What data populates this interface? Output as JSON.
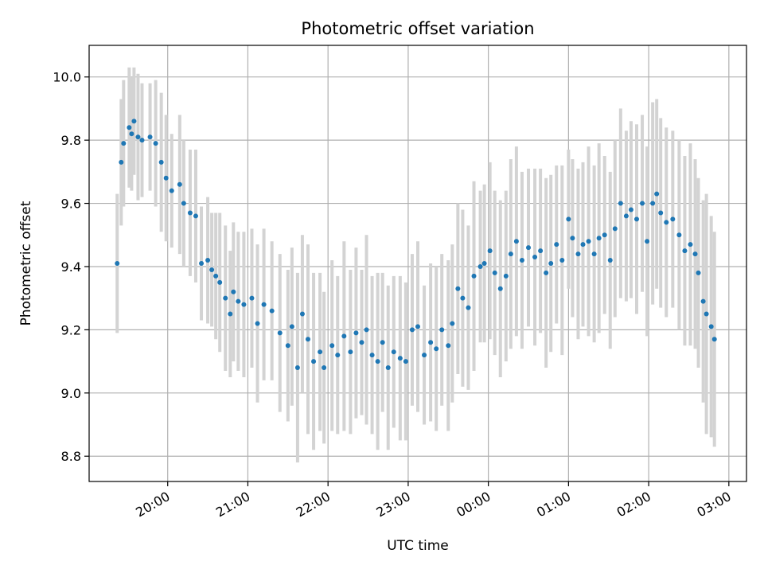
{
  "chart_data": {
    "type": "scatter",
    "title": "Photometric offset variation",
    "xlabel": "UTC time",
    "ylabel": "Photometric offset",
    "x_axis_kind": "time",
    "x_tick_labels": [
      "20:00",
      "21:00",
      "22:00",
      "23:00",
      "00:00",
      "01:00",
      "02:00",
      "03:00"
    ],
    "x_tick_hours": [
      20,
      21,
      22,
      23,
      24,
      25,
      26,
      27
    ],
    "xlim_hours": [
      19.02,
      27.22
    ],
    "y_tick_labels": [
      "8.8",
      "9.0",
      "9.2",
      "9.4",
      "9.6",
      "9.8",
      "10.0"
    ],
    "y_ticks": [
      8.8,
      9.0,
      9.2,
      9.4,
      9.6,
      9.8,
      10.0
    ],
    "ylim": [
      8.72,
      10.1
    ],
    "grid": true,
    "colors": {
      "points": "#1f77b4",
      "error_bars": "#d3d3d3",
      "grid": "#b0b0b0"
    },
    "series": [
      {
        "x_hours": [
          19.37,
          19.42,
          19.45,
          19.52,
          19.55,
          19.58,
          19.63,
          19.68,
          19.78,
          19.85,
          19.92,
          19.98,
          20.05,
          20.15,
          20.2,
          20.28,
          20.35,
          20.42,
          20.5,
          20.55,
          20.6,
          20.65,
          20.72,
          20.78,
          20.82,
          20.88,
          20.95,
          21.05,
          21.12,
          21.2,
          21.3,
          21.4,
          21.5,
          21.55,
          21.62,
          21.68,
          21.75,
          21.82,
          21.9,
          21.95,
          22.05,
          22.12,
          22.2,
          22.28,
          22.35,
          22.42,
          22.48,
          22.55,
          22.62,
          22.68,
          22.75,
          22.82,
          22.9,
          22.97,
          23.05,
          23.12,
          23.2,
          23.28,
          23.35,
          23.42,
          23.5,
          23.55,
          23.62,
          23.68,
          23.75,
          23.82,
          23.9,
          23.95,
          24.02,
          24.08,
          24.15,
          24.22,
          24.28,
          24.35,
          24.42,
          24.5,
          24.58,
          24.65,
          24.72,
          24.78,
          24.85,
          24.92,
          25.0,
          25.05,
          25.12,
          25.18,
          25.25,
          25.32,
          25.38,
          25.45,
          25.52,
          25.58,
          25.65,
          25.72,
          25.78,
          25.85,
          25.92,
          25.98,
          26.05,
          26.1,
          26.15,
          26.22,
          26.3,
          26.38,
          26.45,
          26.52,
          26.58,
          26.62,
          26.68,
          26.72,
          26.78,
          26.82
        ],
        "y": [
          9.41,
          9.73,
          9.79,
          9.84,
          9.82,
          9.86,
          9.81,
          9.8,
          9.81,
          9.79,
          9.73,
          9.68,
          9.64,
          9.66,
          9.6,
          9.57,
          9.56,
          9.41,
          9.42,
          9.39,
          9.37,
          9.35,
          9.3,
          9.25,
          9.32,
          9.29,
          9.28,
          9.3,
          9.22,
          9.28,
          9.26,
          9.19,
          9.15,
          9.21,
          9.08,
          9.25,
          9.17,
          9.1,
          9.13,
          9.08,
          9.15,
          9.12,
          9.18,
          9.13,
          9.19,
          9.16,
          9.2,
          9.12,
          9.1,
          9.16,
          9.08,
          9.13,
          9.11,
          9.1,
          9.2,
          9.21,
          9.12,
          9.16,
          9.14,
          9.2,
          9.15,
          9.22,
          9.33,
          9.3,
          9.27,
          9.37,
          9.4,
          9.41,
          9.45,
          9.38,
          9.33,
          9.37,
          9.44,
          9.48,
          9.42,
          9.46,
          9.43,
          9.45,
          9.38,
          9.41,
          9.47,
          9.42,
          9.55,
          9.49,
          9.44,
          9.47,
          9.48,
          9.44,
          9.49,
          9.5,
          9.42,
          9.52,
          9.6,
          9.56,
          9.58,
          9.55,
          9.6,
          9.48,
          9.6,
          9.63,
          9.57,
          9.54,
          9.55,
          9.5,
          9.45,
          9.47,
          9.44,
          9.38,
          9.29,
          9.25,
          9.21,
          9.17
        ],
        "yerr": [
          0.22,
          0.2,
          0.2,
          0.19,
          0.18,
          0.17,
          0.2,
          0.18,
          0.17,
          0.2,
          0.22,
          0.2,
          0.18,
          0.22,
          0.2,
          0.2,
          0.21,
          0.18,
          0.2,
          0.18,
          0.2,
          0.22,
          0.23,
          0.2,
          0.22,
          0.22,
          0.23,
          0.22,
          0.25,
          0.24,
          0.22,
          0.25,
          0.24,
          0.25,
          0.3,
          0.25,
          0.3,
          0.28,
          0.25,
          0.24,
          0.27,
          0.25,
          0.3,
          0.26,
          0.27,
          0.23,
          0.3,
          0.25,
          0.28,
          0.22,
          0.26,
          0.24,
          0.26,
          0.25,
          0.24,
          0.27,
          0.22,
          0.25,
          0.26,
          0.24,
          0.27,
          0.25,
          0.27,
          0.28,
          0.26,
          0.3,
          0.24,
          0.25,
          0.28,
          0.26,
          0.28,
          0.27,
          0.3,
          0.3,
          0.28,
          0.25,
          0.28,
          0.26,
          0.3,
          0.28,
          0.25,
          0.3,
          0.22,
          0.25,
          0.27,
          0.26,
          0.3,
          0.28,
          0.3,
          0.25,
          0.28,
          0.28,
          0.3,
          0.27,
          0.28,
          0.3,
          0.28,
          0.3,
          0.32,
          0.3,
          0.3,
          0.3,
          0.28,
          0.3,
          0.3,
          0.32,
          0.3,
          0.3,
          0.32,
          0.38,
          0.35,
          0.34
        ]
      }
    ]
  }
}
